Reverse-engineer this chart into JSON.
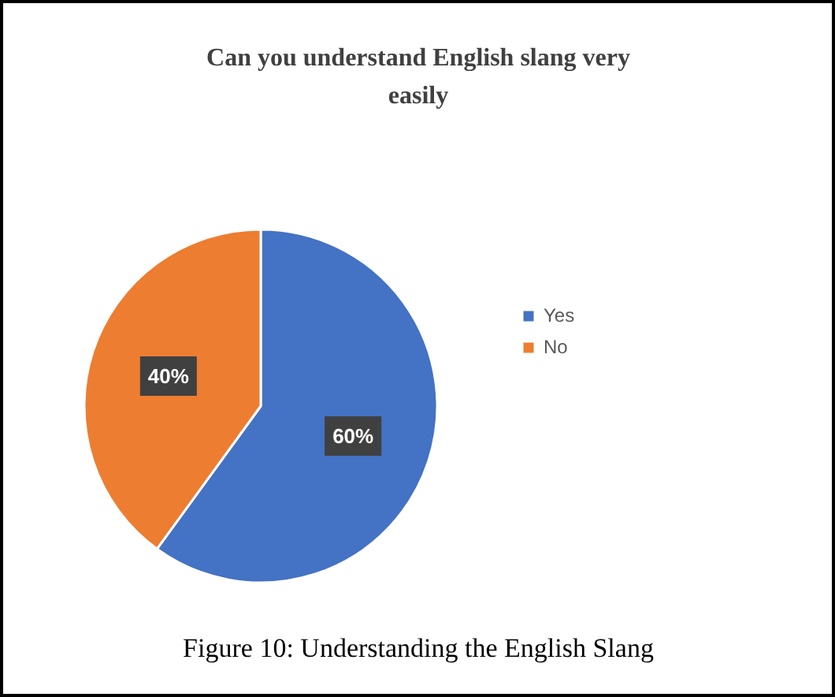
{
  "chart_data": {
    "type": "pie",
    "title": "Can you understand English slang very easily",
    "categories": [
      "Yes",
      "No"
    ],
    "values": [
      60,
      40
    ],
    "colors": [
      "#4472c4",
      "#ed7d31"
    ],
    "value_labels": [
      "60%",
      "40%"
    ],
    "legend": "right",
    "annotations": [
      "Figure 10: Understanding the English Slang"
    ]
  }
}
